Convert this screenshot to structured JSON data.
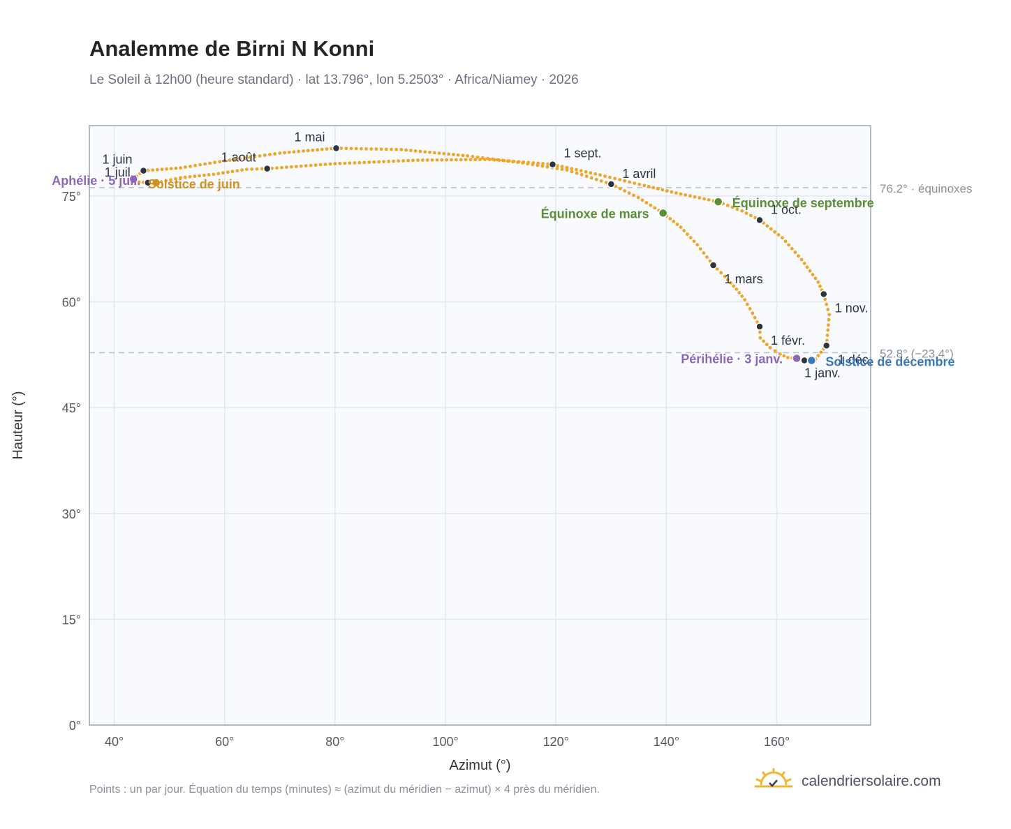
{
  "header": {
    "title": "Analemme de Birni N Konni",
    "subtitle": "Le Soleil à 12h00 (heure standard) · lat 13.796°, lon 5.2503° · Africa/Niamey · 2026"
  },
  "footer": {
    "note": "Points : un par jour. Équation du temps (minutes) ≈ (azimut du méridien − azimut) × 4 près du méridien.",
    "brand": "calendriersolaire.com"
  },
  "colors": {
    "curve": "#f0a526",
    "month_marker": "#2d3340",
    "equinox": "#5a8f35",
    "solstice_june": "#d4901e",
    "solstice_december": "#3a78b8",
    "apsis": "#8e68b8",
    "plot_background": "#f8fafd",
    "grid": "#e3e8ee",
    "frame": "#9aa5b4",
    "reference_line": "#b8c0cb"
  },
  "chart_data": {
    "type": "scatter",
    "title": "Analemme de Birni N Konni",
    "xlabel": "Azimut (°)",
    "ylabel": "Hauteur (°)",
    "xlim": [
      35.5,
      177
    ],
    "ylim": [
      0,
      85
    ],
    "x_ticks": [
      40,
      60,
      80,
      100,
      120,
      140,
      160
    ],
    "y_ticks": [
      0,
      15,
      30,
      45,
      60,
      75
    ],
    "x_tick_labels": [
      "40°",
      "60°",
      "80°",
      "100°",
      "120°",
      "140°",
      "160°"
    ],
    "y_tick_labels": [
      "0°",
      "15°",
      "30°",
      "45°",
      "60°",
      "75°"
    ],
    "grid": true,
    "series": [
      {
        "points": [
          [
            163.6,
            52.0
          ],
          [
            162.0,
            52.1
          ],
          [
            160.6,
            52.6
          ],
          [
            158.8,
            53.5
          ],
          [
            157.0,
            54.9
          ],
          [
            156.9,
            56.5
          ],
          [
            155.6,
            58.4
          ],
          [
            154.2,
            60.3
          ],
          [
            152.7,
            61.8
          ],
          [
            150.6,
            63.6
          ],
          [
            148.5,
            65.2
          ],
          [
            145.6,
            68.1
          ],
          [
            142.6,
            70.6
          ],
          [
            139.4,
            72.6
          ],
          [
            134.9,
            74.8
          ],
          [
            130.0,
            76.7
          ],
          [
            122.0,
            78.7
          ],
          [
            114.0,
            79.7
          ],
          [
            104.0,
            80.7
          ],
          [
            92.0,
            81.6
          ],
          [
            80.2,
            81.8
          ],
          [
            70.0,
            81.1
          ],
          [
            60.0,
            80.0
          ],
          [
            52.0,
            79.0
          ],
          [
            45.3,
            78.6
          ],
          [
            43.5,
            77.4
          ],
          [
            44.5,
            77.0
          ],
          [
            46.1,
            76.9
          ],
          [
            47.6,
            76.9
          ],
          [
            52.0,
            77.6
          ],
          [
            58.0,
            78.1
          ],
          [
            64.0,
            78.8
          ],
          [
            67.7,
            78.9
          ],
          [
            80.0,
            79.6
          ],
          [
            95.0,
            80.1
          ],
          [
            108.0,
            80.2
          ],
          [
            119.4,
            79.5
          ],
          [
            128.0,
            78.0
          ],
          [
            136.0,
            76.5
          ],
          [
            142.6,
            75.3
          ],
          [
            149.4,
            74.2
          ],
          [
            153.7,
            72.9
          ],
          [
            156.9,
            71.6
          ],
          [
            161.0,
            69.1
          ],
          [
            164.5,
            66.0
          ],
          [
            167.5,
            62.8
          ],
          [
            168.5,
            61.1
          ],
          [
            169.5,
            58.2
          ],
          [
            169.0,
            53.8
          ],
          [
            167.0,
            51.9
          ],
          [
            166.3,
            51.7
          ],
          [
            165.0,
            51.7
          ],
          [
            163.6,
            52.0
          ]
        ]
      }
    ],
    "month_markers": [
      {
        "label": "1 janv.",
        "x": 165.0,
        "y": 51.7,
        "anchor": "start",
        "dx": 0,
        "dy": 24
      },
      {
        "label": "1 févr.",
        "x": 156.9,
        "y": 56.5,
        "anchor": "start",
        "dx": 16,
        "dy": 26
      },
      {
        "label": "1 mars",
        "x": 148.5,
        "y": 65.2,
        "anchor": "start",
        "dx": 16,
        "dy": 26
      },
      {
        "label": "1 avril",
        "x": 130.0,
        "y": 76.7,
        "anchor": "start",
        "dx": 16,
        "dy": -9
      },
      {
        "label": "1 mai",
        "x": 80.2,
        "y": 81.8,
        "anchor": "end",
        "dx": -16,
        "dy": -10
      },
      {
        "label": "1 juin",
        "x": 45.3,
        "y": 78.6,
        "anchor": "end",
        "dx": -16,
        "dy": -10
      },
      {
        "label": "1 juil.",
        "x": 46.1,
        "y": 76.9,
        "anchor": "end",
        "dx": -20,
        "dy": -9
      },
      {
        "label": "1 août",
        "x": 67.7,
        "y": 78.9,
        "anchor": "end",
        "dx": -16,
        "dy": -10
      },
      {
        "label": "1 sept.",
        "x": 119.4,
        "y": 79.5,
        "anchor": "start",
        "dx": 16,
        "dy": -10
      },
      {
        "label": "1 oct.",
        "x": 156.9,
        "y": 71.6,
        "anchor": "start",
        "dx": 16,
        "dy": -9
      },
      {
        "label": "1 nov.",
        "x": 168.5,
        "y": 61.1,
        "anchor": "start",
        "dx": 16,
        "dy": 26
      },
      {
        "label": "1 déc.",
        "x": 169.0,
        "y": 53.8,
        "anchor": "start",
        "dx": 16,
        "dy": 26
      }
    ],
    "events": [
      {
        "label": "Équinoxe de mars",
        "x": 139.4,
        "y": 72.6,
        "kind": "equinox",
        "anchor": "end",
        "dx": -20,
        "dy": 7
      },
      {
        "label": "Équinoxe de septembre",
        "x": 149.4,
        "y": 74.2,
        "kind": "equinox",
        "anchor": "start",
        "dx": 20,
        "dy": 8
      },
      {
        "label": "Solstice de juin",
        "x": 47.6,
        "y": 76.9,
        "kind": "solstice_june",
        "anchor": "start",
        "dx": -12,
        "dy": 8
      },
      {
        "label": "Solstice de décembre",
        "x": 166.3,
        "y": 51.7,
        "kind": "solstice_december",
        "anchor": "start",
        "dx": 20,
        "dy": 8
      },
      {
        "label": "Aphélie · 5 juil.",
        "x": 43.5,
        "y": 77.4,
        "kind": "apsis",
        "anchor": "end",
        "dx": 10,
        "dy": 8
      },
      {
        "label": "Périhélie · 3 janv.",
        "x": 163.6,
        "y": 52.0,
        "kind": "apsis",
        "anchor": "end",
        "dx": -20,
        "dy": 7
      }
    ],
    "reference_lines": [
      {
        "y": 76.2,
        "label": "76.2° · équinoxes"
      },
      {
        "y": 52.8,
        "label": "52.8° (−23.4°)"
      }
    ]
  }
}
